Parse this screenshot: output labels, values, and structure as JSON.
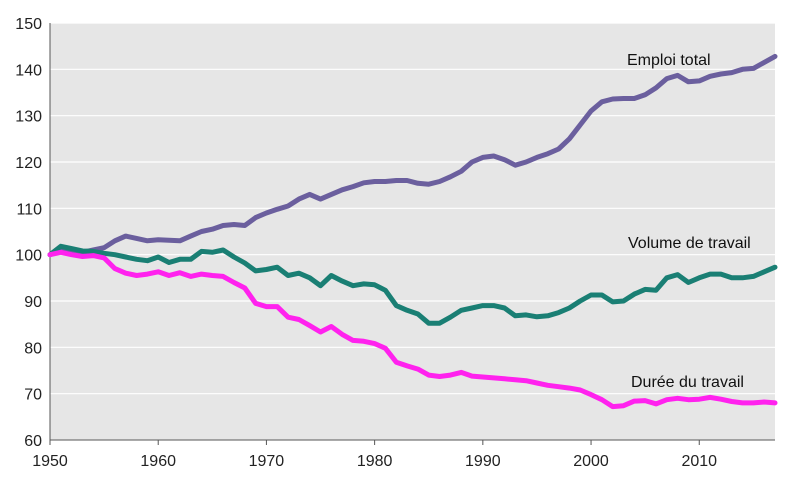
{
  "chart_data": {
    "type": "line",
    "title": "",
    "xlabel": "",
    "ylabel": "",
    "xlim": [
      1950,
      2017
    ],
    "ylim": [
      60,
      150
    ],
    "grid": true,
    "background": "#e6e6e6",
    "x_ticks": [
      "1950",
      "1960",
      "1970",
      "1980",
      "1990",
      "2000",
      "2010"
    ],
    "y_ticks": [
      "60",
      "70",
      "80",
      "90",
      "100",
      "110",
      "120",
      "130",
      "140",
      "150"
    ],
    "x": [
      1950,
      1951,
      1952,
      1953,
      1954,
      1955,
      1956,
      1957,
      1958,
      1959,
      1960,
      1961,
      1962,
      1963,
      1964,
      1965,
      1966,
      1967,
      1968,
      1969,
      1970,
      1971,
      1972,
      1973,
      1974,
      1975,
      1976,
      1977,
      1978,
      1979,
      1980,
      1981,
      1982,
      1983,
      1984,
      1985,
      1986,
      1987,
      1988,
      1989,
      1990,
      1991,
      1992,
      1993,
      1994,
      1995,
      1996,
      1997,
      1998,
      1999,
      2000,
      2001,
      2002,
      2003,
      2004,
      2005,
      2006,
      2007,
      2008,
      2009,
      2010,
      2011,
      2012,
      2013,
      2014,
      2015,
      2016,
      2017
    ],
    "series": [
      {
        "name": "Emploi total",
        "color": "#6b5f9e",
        "values": [
          100,
          101.5,
          101,
          100.5,
          101,
          101.5,
          103,
          104,
          103.5,
          103,
          103.2,
          103.1,
          103,
          104,
          105,
          105.5,
          106.3,
          106.5,
          106.3,
          108,
          109,
          109.8,
          110.5,
          112,
          113,
          112,
          113,
          114,
          114.7,
          115.5,
          115.8,
          115.8,
          116,
          116,
          115.4,
          115.2,
          115.8,
          116.8,
          118,
          120,
          121,
          121.3,
          120.5,
          119.3,
          120,
          121,
          121.8,
          122.8,
          125,
          128,
          131,
          133,
          133.6,
          133.7,
          133.7,
          134.5,
          136,
          138,
          138.7,
          137.3,
          137.5,
          138.5,
          139,
          139.3,
          140,
          140.2,
          141.5,
          142.8
        ]
      },
      {
        "name": "Volume de travail",
        "color": "#1a7f74",
        "values": [
          100,
          101.8,
          101.3,
          100.8,
          100.7,
          100.3,
          100,
          99.5,
          99,
          98.7,
          99.5,
          98.3,
          99,
          99,
          100.7,
          100.5,
          101,
          99.5,
          98.2,
          96.5,
          96.8,
          97.3,
          95.5,
          96,
          95,
          93.3,
          95.5,
          94.3,
          93.3,
          93.7,
          93.5,
          92.3,
          89,
          88,
          87.2,
          85.2,
          85.2,
          86.5,
          88,
          88.5,
          89,
          89,
          88.5,
          86.8,
          87,
          86.6,
          86.8,
          87.5,
          88.5,
          90,
          91.3,
          91.3,
          89.8,
          90,
          91.5,
          92.5,
          92.3,
          95,
          95.7,
          94,
          95,
          95.8,
          95.8,
          95,
          95,
          95.3,
          96.3,
          97.3
        ]
      },
      {
        "name": "Durée du travail",
        "color": "#ff22ee",
        "values": [
          100,
          100.5,
          100,
          99.6,
          99.8,
          99.3,
          97,
          96,
          95.5,
          95.8,
          96.3,
          95.5,
          96.1,
          95.3,
          95.8,
          95.5,
          95.3,
          94,
          92.8,
          89.5,
          88.8,
          88.8,
          86.5,
          86,
          84.7,
          83.3,
          84.5,
          82.8,
          81.5,
          81.3,
          80.8,
          79.8,
          76.8,
          76,
          75.3,
          74,
          73.7,
          74,
          74.6,
          73.8,
          73.6,
          73.4,
          73.2,
          73,
          72.8,
          72.3,
          71.8,
          71.5,
          71.2,
          70.8,
          69.8,
          68.7,
          67.2,
          67.4,
          68.4,
          68.5,
          67.8,
          68.7,
          69,
          68.7,
          68.8,
          69.2,
          68.8,
          68.3,
          68,
          68,
          68.2,
          68
        ]
      }
    ],
    "annotations": [
      "Emploi total",
      "Volume de travail",
      "Durée du travail"
    ]
  }
}
